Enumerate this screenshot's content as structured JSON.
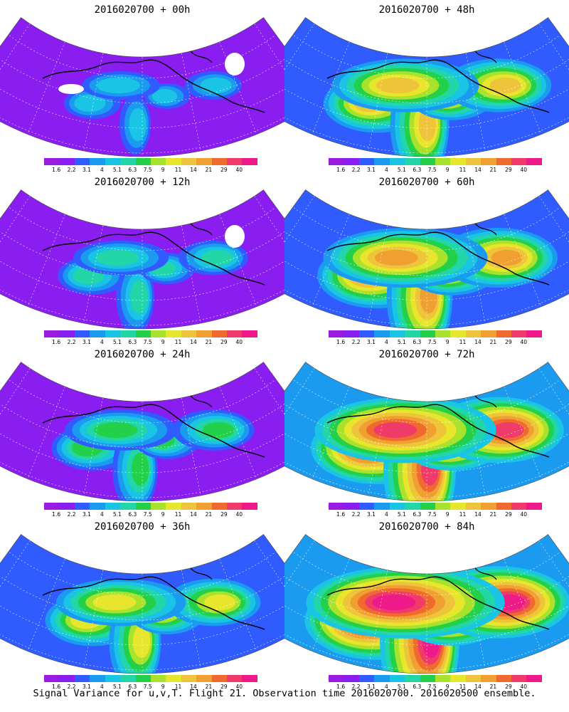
{
  "caption": "Signal Variance for u,v,T. Flight 21. Observation time 2016020700. 2016020500 ensemble.",
  "colorbar": {
    "labels": [
      "1.6",
      "2.2",
      "3.1",
      "4",
      "5.1",
      "6.3",
      "7.5",
      "9",
      "11",
      "14",
      "21",
      "29",
      "40"
    ],
    "colors": [
      "#9a1be0",
      "#8a1ef0",
      "#2f5bff",
      "#1b9bf0",
      "#19c4e4",
      "#22d6a8",
      "#22d04a",
      "#a8e22c",
      "#e8e62c",
      "#eec43a",
      "#f0a030",
      "#f06a30",
      "#f03a6a",
      "#ee1a8a"
    ]
  },
  "panels": [
    {
      "id": "00h",
      "title": "2016020700 + 00h",
      "level": 0
    },
    {
      "id": "48h",
      "title": "2016020700 + 48h",
      "level": 4
    },
    {
      "id": "12h",
      "title": "2016020700 + 12h",
      "level": 1
    },
    {
      "id": "60h",
      "title": "2016020700 + 60h",
      "level": 5
    },
    {
      "id": "24h",
      "title": "2016020700 + 24h",
      "level": 2
    },
    {
      "id": "72h",
      "title": "2016020700 + 72h",
      "level": 6
    },
    {
      "id": "36h",
      "title": "2016020700 + 36h",
      "level": 3
    },
    {
      "id": "84h",
      "title": "2016020700 + 84h",
      "level": 7
    }
  ]
}
